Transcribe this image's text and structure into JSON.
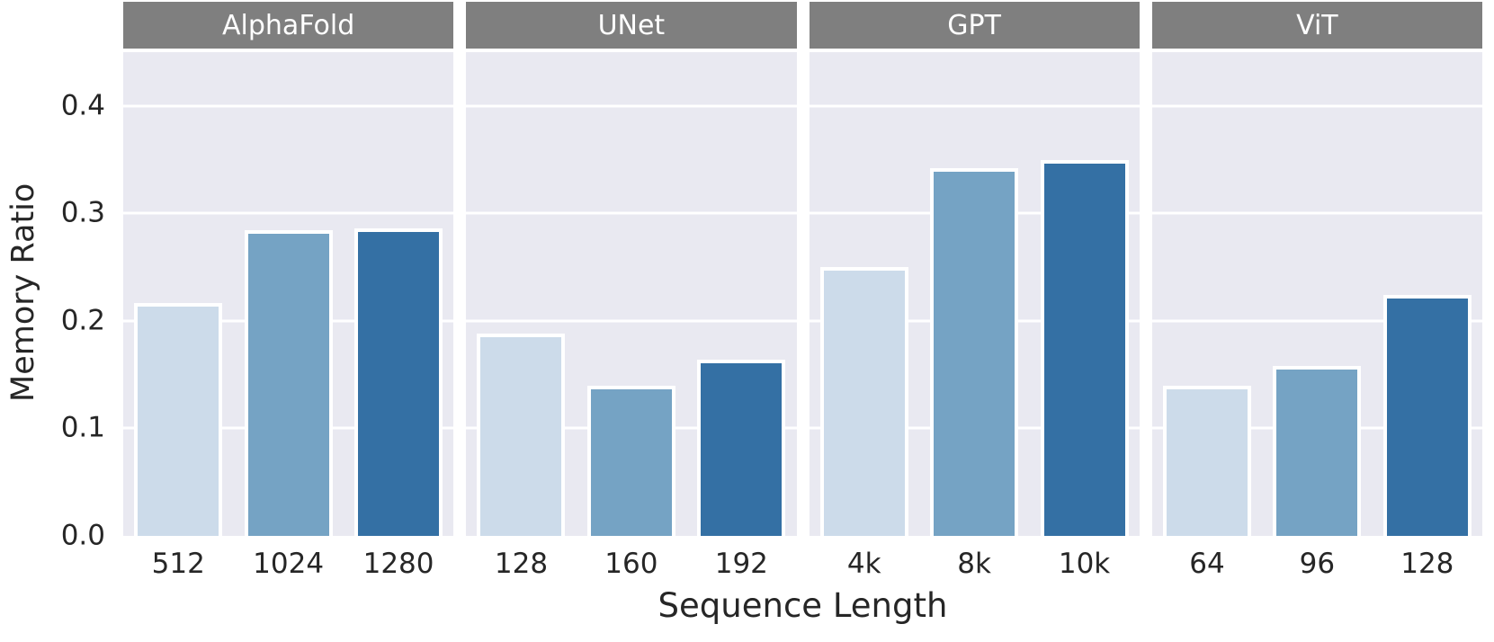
{
  "chart_data": {
    "type": "bar",
    "title": "",
    "xlabel": "Sequence Length",
    "ylabel": "Memory Ratio",
    "ylim": [
      0,
      0.45
    ],
    "yticks": [
      {
        "value": 0.0,
        "label": "0.0"
      },
      {
        "value": 0.1,
        "label": "0.1"
      },
      {
        "value": 0.2,
        "label": "0.2"
      },
      {
        "value": 0.3,
        "label": "0.3"
      },
      {
        "value": 0.4,
        "label": "0.4"
      }
    ],
    "grid": true,
    "legend_position": "none",
    "facets": [
      {
        "title": "AlphaFold",
        "categories": [
          "512",
          "1024",
          "1280"
        ],
        "values": [
          0.217,
          0.284,
          0.286
        ]
      },
      {
        "title": "UNet",
        "categories": [
          "128",
          "160",
          "192"
        ],
        "values": [
          0.188,
          0.14,
          0.164
        ]
      },
      {
        "title": "GPT",
        "categories": [
          "4k",
          "8k",
          "10k"
        ],
        "values": [
          0.25,
          0.342,
          0.35
        ]
      },
      {
        "title": "ViT",
        "categories": [
          "64",
          "96",
          "128"
        ],
        "values": [
          0.14,
          0.158,
          0.224
        ]
      }
    ],
    "bar_palette": [
      "#ccdbea",
      "#75a3c4",
      "#3470a4"
    ],
    "colors": {
      "plot_background": "#e9e9f1",
      "strip_background": "#7f7f7f",
      "strip_text": "#ffffff",
      "gridline": "#ffffff",
      "bar_edge": "#ffffff",
      "text": "#262626"
    }
  }
}
